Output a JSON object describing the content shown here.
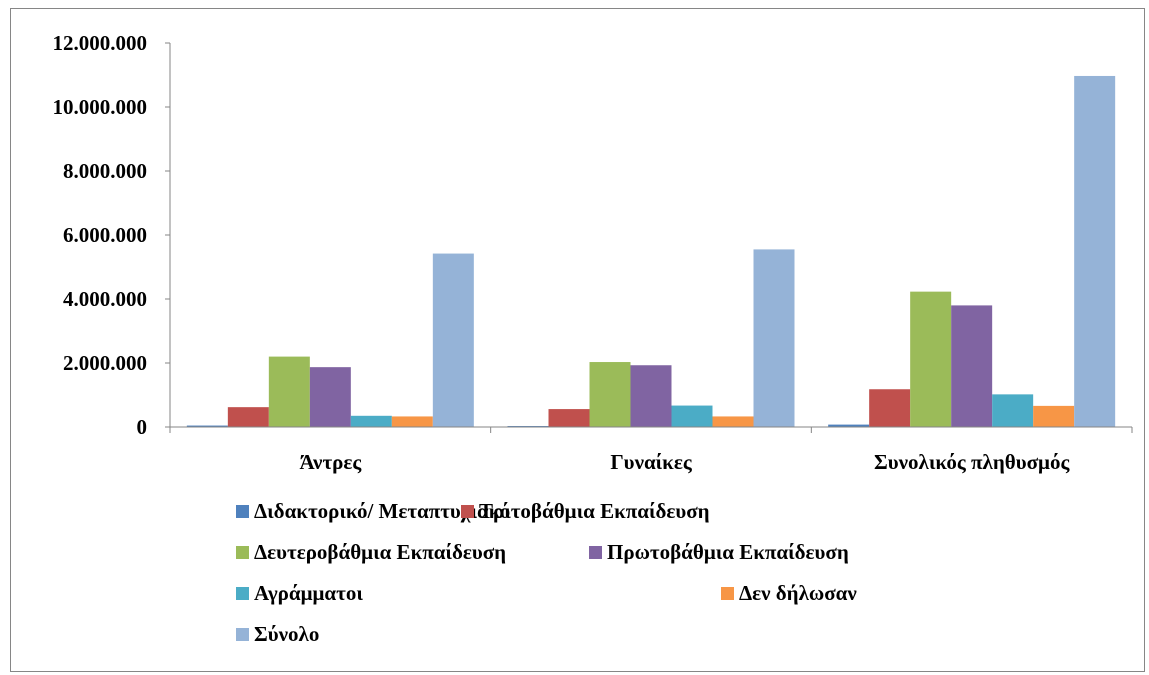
{
  "chart_data": {
    "type": "bar",
    "categories": [
      "Άντρες",
      "Γυναίκες",
      "Συνολικός πληθυσμός"
    ],
    "series": [
      {
        "name": "Διδακτορικό/ Μεταπτυχιακό",
        "color": "#4F81BD",
        "values": [
          45000,
          30000,
          75000
        ]
      },
      {
        "name": "Τριτοβάθμια Εκπαίδευση",
        "color": "#C0504D",
        "values": [
          620000,
          560000,
          1180000
        ]
      },
      {
        "name": "Δευτεροβάθμια Εκπαίδευση",
        "color": "#9BBB59",
        "values": [
          2200000,
          2030000,
          4230000
        ]
      },
      {
        "name": "Πρωτοβάθμια Εκπαίδευση",
        "color": "#8064A2",
        "values": [
          1870000,
          1930000,
          3800000
        ]
      },
      {
        "name": "Αγράμματοι",
        "color": "#4BACC6",
        "values": [
          350000,
          670000,
          1020000
        ]
      },
      {
        "name": "Δεν δήλωσαν",
        "color": "#F79646",
        "values": [
          330000,
          330000,
          660000
        ]
      },
      {
        "name": "Σύνολο",
        "color": "#95B3D7",
        "values": [
          5420000,
          5550000,
          10970000
        ]
      }
    ],
    "ylim": [
      0,
      12000000
    ],
    "yticks": [
      "0",
      "2.000.000",
      "4.000.000",
      "6.000.000",
      "8.000.000",
      "10.000.000",
      "12.000.000"
    ],
    "title": "",
    "xlabel": "",
    "ylabel": "",
    "grid": false,
    "legend_position": "bottom"
  }
}
